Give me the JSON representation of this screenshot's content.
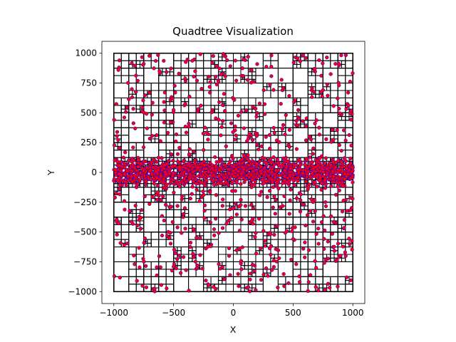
{
  "chart_data": {
    "type": "scatter",
    "title": "Quadtree Visualization",
    "xlabel": "X",
    "ylabel": "Y",
    "xlim": [
      -1100,
      1100
    ],
    "ylim": [
      -1100,
      1100
    ],
    "xticks": [
      -1000,
      -500,
      0,
      500,
      1000
    ],
    "yticks": [
      -1000,
      -750,
      -500,
      -250,
      0,
      250,
      500,
      750,
      1000
    ],
    "xtick_labels": [
      "−1000",
      "−500",
      "0",
      "500",
      "1000"
    ],
    "ytick_labels": [
      "−1000",
      "−750",
      "−500",
      "−250",
      "0",
      "250",
      "500",
      "750",
      "1000"
    ],
    "grid": false,
    "quadtree_root": {
      "xmin": -1000,
      "xmax": 1000,
      "ymin": -1000,
      "ymax": 1000
    },
    "point_distribution": {
      "uniform_points": 700,
      "band_points": 1100,
      "band_center_y": 0,
      "band_half_height": 130
    },
    "colors": {
      "point_fill": "#ff0000",
      "point_edge": "#0000ff",
      "cell_edge": "#000000",
      "root_edge": "#8b0000"
    }
  }
}
